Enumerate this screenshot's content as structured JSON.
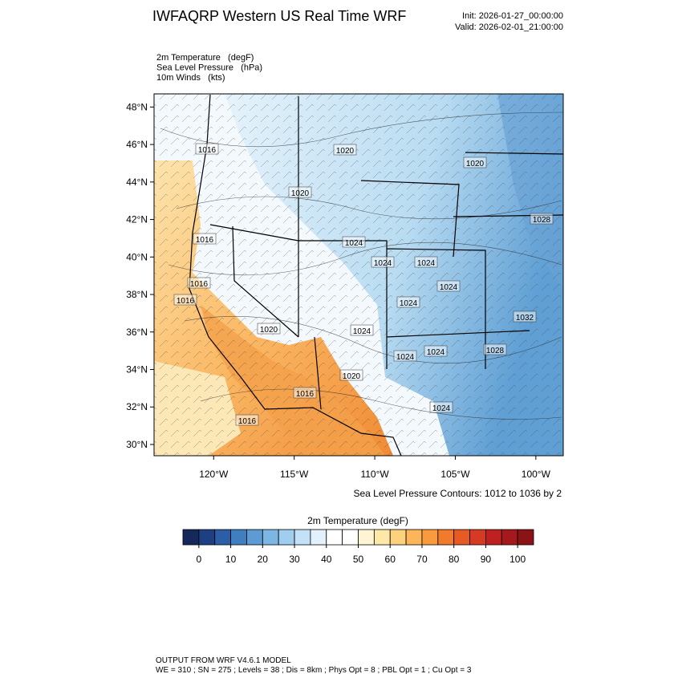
{
  "header": {
    "title": "IWFAQRP Western US Real Time WRF",
    "init": "Init: 2026-01-27_00:00:00",
    "valid": "Valid: 2026-02-01_21:00:00"
  },
  "fields": [
    "2m Temperature   (degF)",
    "Sea Level Pressure   (hPa)",
    "10m Winds   (kts)"
  ],
  "map": {
    "xlim": [
      -123.7,
      -98.3
    ],
    "ylim": [
      29.4,
      48.7
    ],
    "xticks": [
      {
        "value": -120,
        "label": "120°W"
      },
      {
        "value": -115,
        "label": "115°W"
      },
      {
        "value": -110,
        "label": "110°W"
      },
      {
        "value": -105,
        "label": "105°W"
      },
      {
        "value": -100,
        "label": "100°W"
      }
    ],
    "yticks": [
      {
        "value": 30,
        "label": "30°N"
      },
      {
        "value": 32,
        "label": "32°N"
      },
      {
        "value": 34,
        "label": "34°N"
      },
      {
        "value": 36,
        "label": "36°N"
      },
      {
        "value": 38,
        "label": "38°N"
      },
      {
        "value": 40,
        "label": "40°N"
      },
      {
        "value": 42,
        "label": "42°N"
      },
      {
        "value": 44,
        "label": "44°N"
      },
      {
        "value": 46,
        "label": "46°N"
      },
      {
        "value": 48,
        "label": "48°N"
      }
    ],
    "contour_labels": [
      1016,
      1020,
      1020,
      1020,
      1016,
      1024,
      1024,
      1024,
      1016,
      1024,
      1016,
      1024,
      1020,
      1024,
      1032,
      1028,
      1024,
      1024,
      1020,
      1016,
      1024,
      1016,
      1028
    ],
    "contour_note": "Sea Level Pressure Contours: 1012 to 1036 by 2"
  },
  "colorbar": {
    "title": "2m Temperature  (degF)",
    "colors": [
      "#14285a",
      "#1f3f85",
      "#2c5ea8",
      "#3f7fc0",
      "#5c9bd3",
      "#7db6e3",
      "#a1cdef",
      "#c4e2f7",
      "#e2f1fb",
      "#ffffff",
      "#ffffff",
      "#fff4d4",
      "#fee8a8",
      "#fdd27c",
      "#fdb55a",
      "#f99a3c",
      "#f27a2c",
      "#e65a24",
      "#d63a22",
      "#bf2121",
      "#a5181c",
      "#8a1316"
    ],
    "ticks": [
      0,
      10,
      20,
      30,
      40,
      50,
      60,
      70,
      80,
      90,
      100
    ]
  },
  "footer": [
    "OUTPUT FROM WRF V4.6.1 MODEL",
    "WE = 310 ; SN = 275 ; Levels = 38 ; Dis = 8km ; Phys Opt = 8 ; PBL Opt = 1 ; Cu Opt = 3"
  ]
}
